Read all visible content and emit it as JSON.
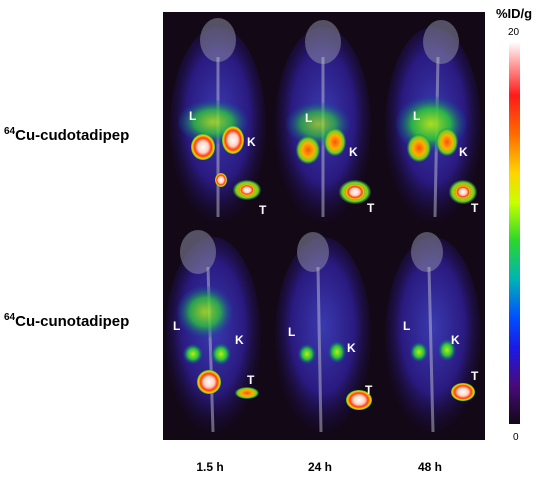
{
  "rows": [
    {
      "label_sup": "64",
      "label_main": "Cu-cudotadipep"
    },
    {
      "label_sup": "64",
      "label_main": "Cu-cunotadipep"
    }
  ],
  "columns": [
    "1.5 h",
    "24 h",
    "48 h"
  ],
  "colorbar": {
    "unit": "%ID/g",
    "max": "20",
    "min": "0"
  },
  "organ_labels": {
    "liver": "L",
    "kidney": "K",
    "tumor": "T"
  }
}
